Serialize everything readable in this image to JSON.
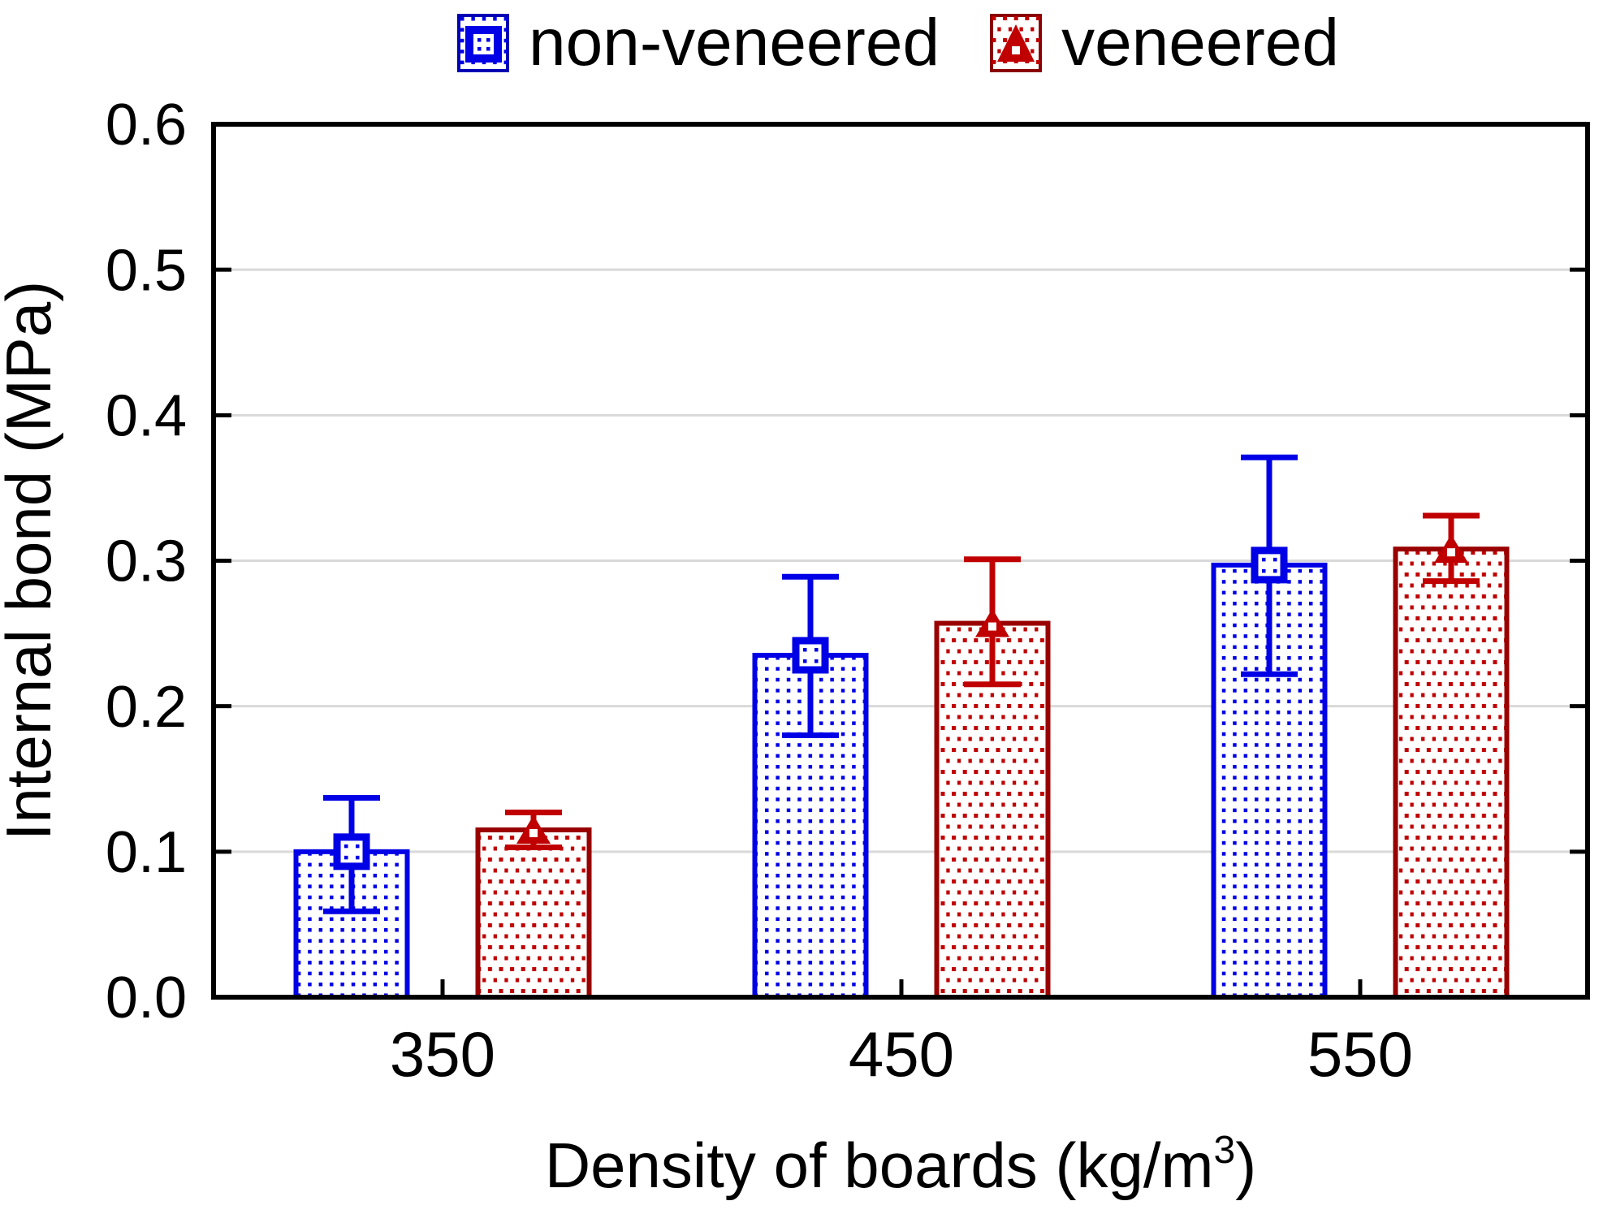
{
  "legend": {
    "items": [
      {
        "label": "non-veneered",
        "marker": "square-icon",
        "color": "#0000e6"
      },
      {
        "label": "veneered",
        "marker": "triangle-icon",
        "color": "#c00000"
      }
    ]
  },
  "colors": {
    "non_veneered_line": "#0000e6",
    "non_veneered_swatch_border": "#0000b4",
    "veneered_dot": "#c00000",
    "veneered_bar_border": "#990000",
    "gridline": "#d9d9d9",
    "axis": "#000000"
  },
  "chart_data": {
    "type": "bar",
    "title": "",
    "xlabel": "Density of boards (kg/m³)",
    "xlabel_parts": {
      "pre": "Density of boards (kg/m",
      "sup": "3",
      "post": ")"
    },
    "ylabel": "Internal bond (MPa)",
    "categories": [
      "350",
      "450",
      "550"
    ],
    "series": [
      {
        "name": "non-veneered",
        "values": [
          0.1,
          0.235,
          0.297
        ],
        "error_low": [
          0.059,
          0.18,
          0.222
        ],
        "error_high": [
          0.137,
          0.289,
          0.371
        ]
      },
      {
        "name": "veneered",
        "values": [
          0.115,
          0.257,
          0.308
        ],
        "error_low": [
          0.103,
          0.215,
          0.286
        ],
        "error_high": [
          0.127,
          0.301,
          0.331
        ]
      }
    ],
    "ylim": [
      0.0,
      0.6
    ],
    "yticks": [
      0.0,
      0.1,
      0.2,
      0.3,
      0.4,
      0.5,
      0.6
    ],
    "ytick_labels": [
      "0.0",
      "0.1",
      "0.2",
      "0.3",
      "0.4",
      "0.5",
      "0.6"
    ],
    "grid": true,
    "legend_position": "top-center"
  }
}
